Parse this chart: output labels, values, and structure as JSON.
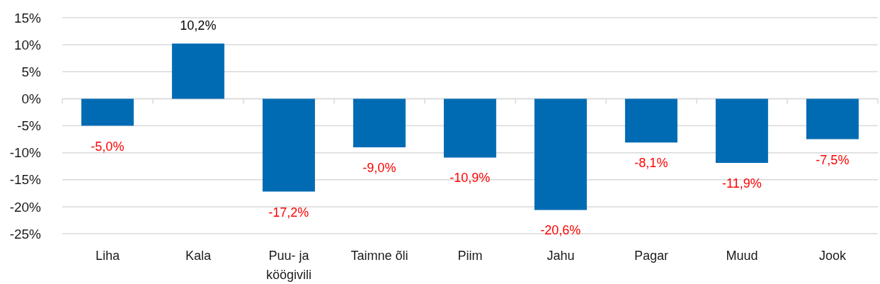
{
  "chart_data": {
    "type": "bar",
    "categories": [
      "Liha",
      "Kala",
      "Puu- ja köögivili",
      "Taimne õli",
      "Piim",
      "Jahu",
      "Pagar",
      "Muud",
      "Jook"
    ],
    "values": [
      -5.0,
      10.2,
      -17.2,
      -9.0,
      -10.9,
      -20.6,
      -8.1,
      -11.9,
      -7.5
    ],
    "color": "#006bb3",
    "value_labels": [
      "-5,0%",
      "10,2%",
      "-17,2%",
      "-9,0%",
      "-10,9%",
      "-20,6%",
      "-8,1%",
      "-11,9%",
      "-7,5%"
    ],
    "ylim": [
      -25,
      15
    ],
    "yticks": [
      {
        "value": 15,
        "label": "15%"
      },
      {
        "value": 10,
        "label": "10%"
      },
      {
        "value": 5,
        "label": "5%"
      },
      {
        "value": 0,
        "label": "0%"
      },
      {
        "value": -5,
        "label": "-5%"
      },
      {
        "value": -10,
        "label": "-10%"
      },
      {
        "value": -15,
        "label": "-15%"
      },
      {
        "value": -20,
        "label": "-20%"
      },
      {
        "value": -25,
        "label": "-25%"
      }
    ],
    "grid": "y"
  }
}
